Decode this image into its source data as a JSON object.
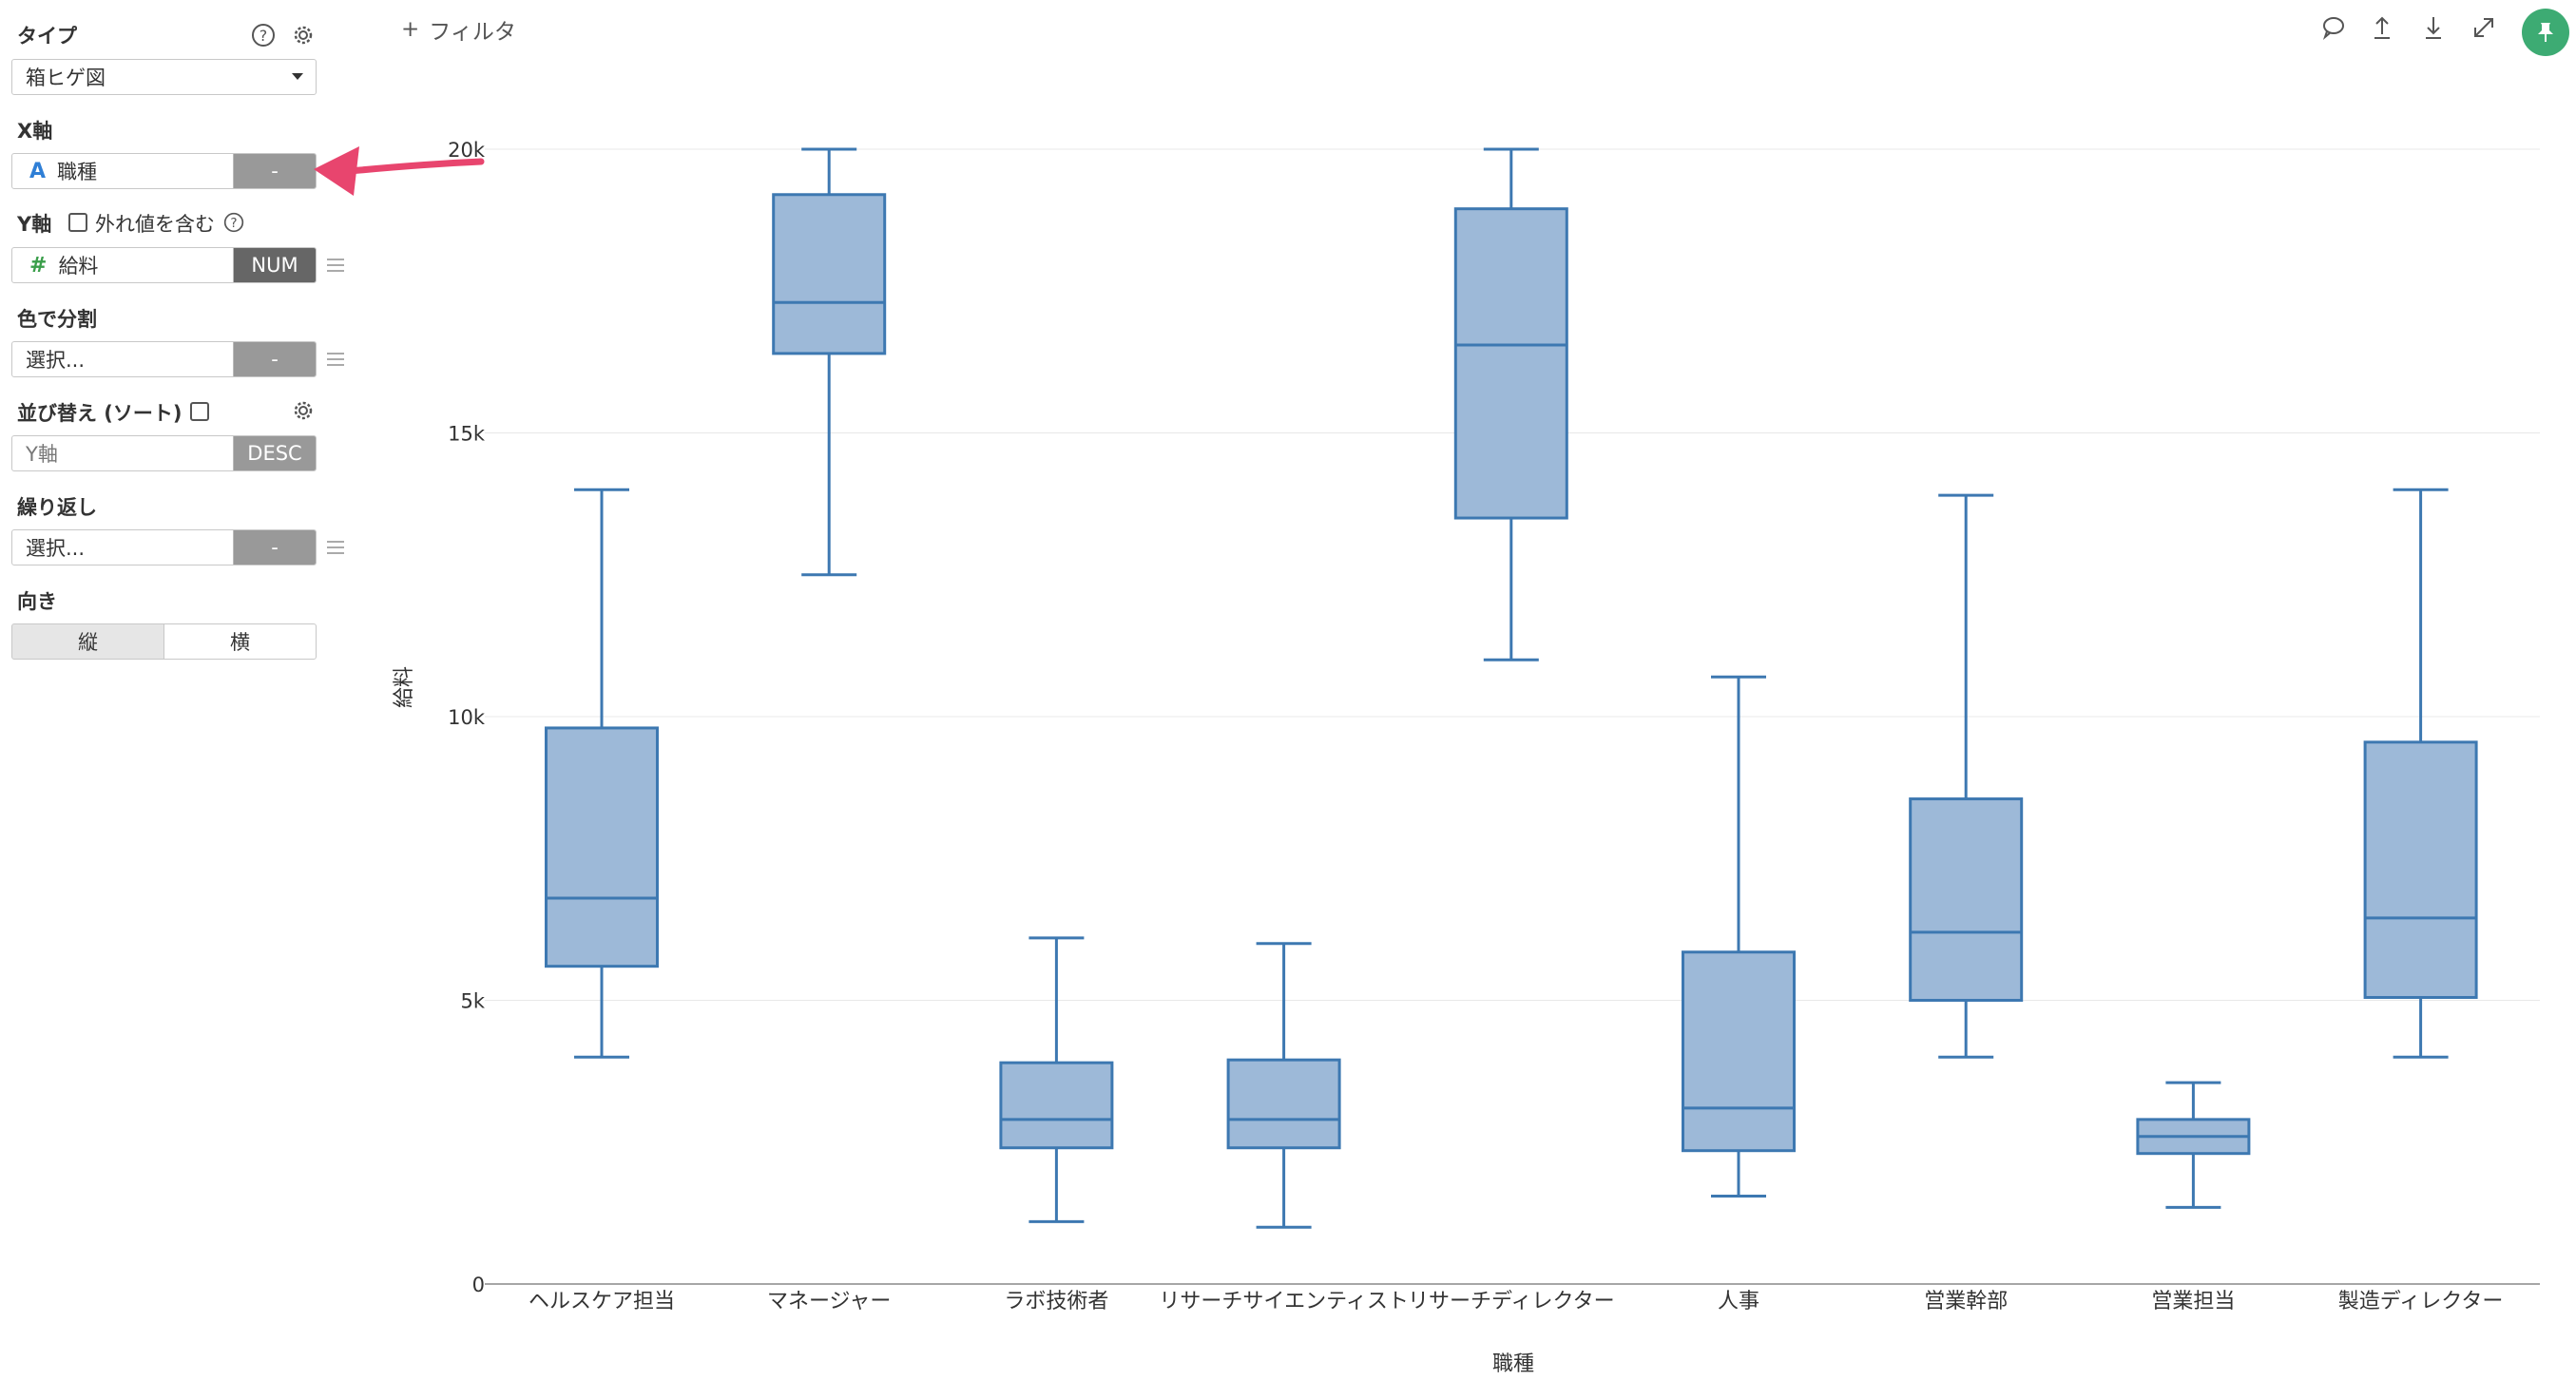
{
  "panel": {
    "type_label": "タイプ",
    "type_value": "箱ヒゲ図",
    "x_label": "X軸",
    "x_type": "A",
    "x_field": "職種",
    "x_tag": "-",
    "y_label": "Y軸",
    "y_outlier_label": "外れ値を含む",
    "y_type": "#",
    "y_field": "給料",
    "y_tag": "NUM",
    "color_label": "色で分割",
    "color_value": "選択...",
    "color_tag": "-",
    "sort_label": "並び替え (ソート)",
    "sort_placeholder": "Y軸",
    "sort_tag": "DESC",
    "repeat_label": "繰り返し",
    "repeat_value": "選択...",
    "repeat_tag": "-",
    "orient_label": "向き",
    "orient_vertical": "縦",
    "orient_horizontal": "横"
  },
  "toolbar": {
    "filter_plus": "+",
    "filter_label": "フィルタ",
    "icons": [
      "comment-icon",
      "upload-icon",
      "download-icon",
      "expand-icon",
      "pin-icon"
    ]
  },
  "colors": {
    "box_fill": "#9db9d8",
    "box_stroke": "#3d78b1",
    "pin_green": "#3dab73",
    "arrow_pink": "#e8456e"
  },
  "chart_data": {
    "type": "boxplot",
    "xlabel": "職種",
    "ylabel": "給料",
    "ylim": [
      0,
      20000
    ],
    "yticks": [
      0,
      5000,
      10000,
      15000,
      20000
    ],
    "ytick_labels": [
      "0",
      "5k",
      "10k",
      "15k",
      "20k"
    ],
    "grid": true,
    "categories": [
      "ヘルスケア担当",
      "マネージャー",
      "ラボ技術者",
      "リサーチサイエンティスト",
      "リサーチディレクター",
      "人事",
      "営業幹部",
      "営業担当",
      "製造ディレクター"
    ],
    "boxes": [
      {
        "min": 4000,
        "q1": 5600,
        "median": 6800,
        "q3": 9800,
        "max": 14000
      },
      {
        "min": 12500,
        "q1": 16400,
        "median": 17300,
        "q3": 19200,
        "max": 20000
      },
      {
        "min": 1100,
        "q1": 2400,
        "median": 2900,
        "q3": 3900,
        "max": 6100
      },
      {
        "min": 1000,
        "q1": 2400,
        "median": 2900,
        "q3": 3950,
        "max": 6000
      },
      {
        "min": 11000,
        "q1": 13500,
        "median": 16550,
        "q3": 18950,
        "max": 20000
      },
      {
        "min": 1550,
        "q1": 2350,
        "median": 3100,
        "q3": 5850,
        "max": 10700
      },
      {
        "min": 4000,
        "q1": 5000,
        "median": 6200,
        "q3": 8550,
        "max": 13900
      },
      {
        "min": 1350,
        "q1": 2300,
        "median": 2600,
        "q3": 2900,
        "max": 3550
      },
      {
        "min": 4000,
        "q1": 5050,
        "median": 6450,
        "q3": 9550,
        "max": 14000
      }
    ]
  }
}
